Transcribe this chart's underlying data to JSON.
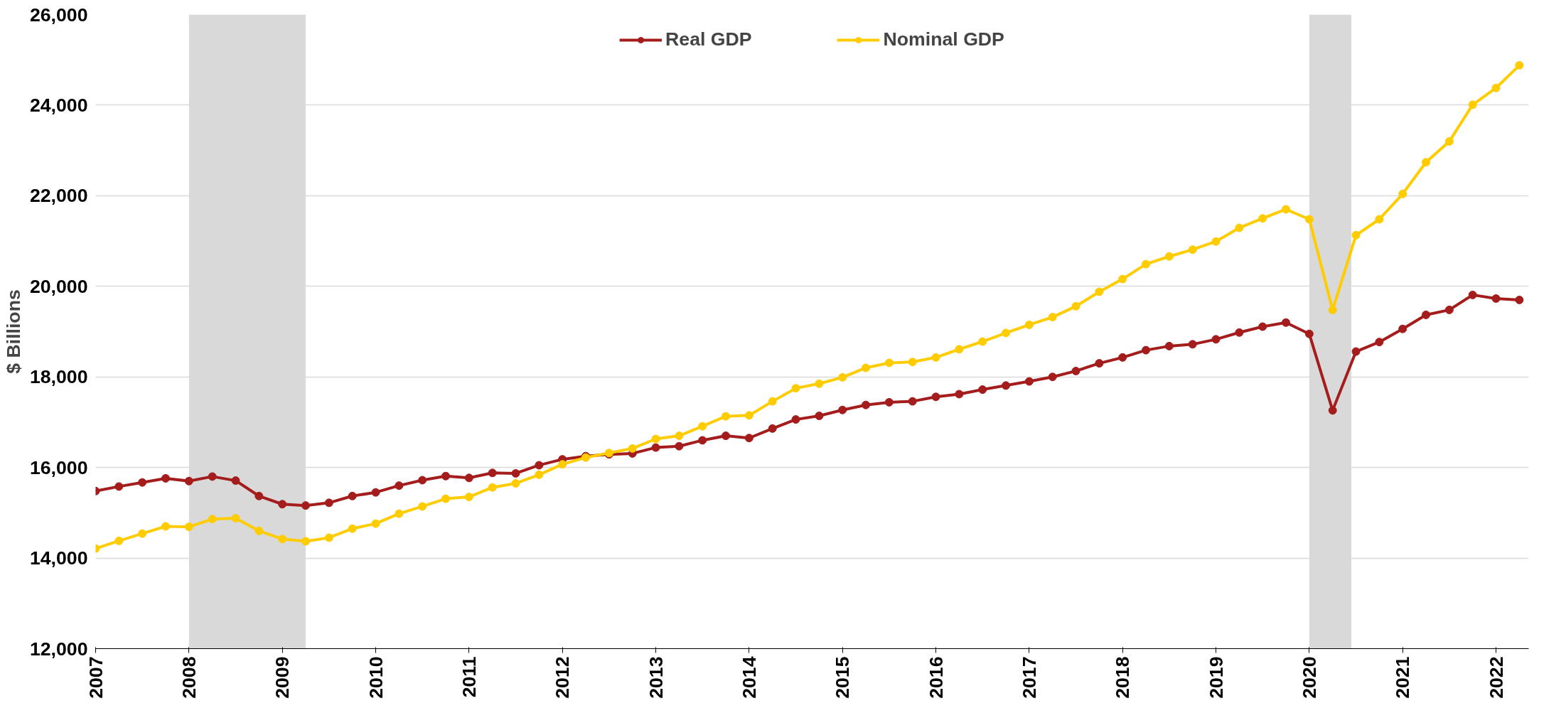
{
  "chart_data": {
    "type": "line",
    "ylabel": "$ Billions",
    "x": [
      2007,
      2007.25,
      2007.5,
      2007.75,
      2008,
      2008.25,
      2008.5,
      2008.75,
      2009,
      2009.25,
      2009.5,
      2009.75,
      2010,
      2010.25,
      2010.5,
      2010.75,
      2011,
      2011.25,
      2011.5,
      2011.75,
      2012,
      2012.25,
      2012.5,
      2012.75,
      2013,
      2013.25,
      2013.5,
      2013.75,
      2014,
      2014.25,
      2014.5,
      2014.75,
      2015,
      2015.25,
      2015.5,
      2015.75,
      2016,
      2016.25,
      2016.5,
      2016.75,
      2017,
      2017.25,
      2017.5,
      2017.75,
      2018,
      2018.25,
      2018.5,
      2018.75,
      2019,
      2019.25,
      2019.5,
      2019.75,
      2020,
      2020.25,
      2020.5,
      2020.75,
      2021,
      2021.25,
      2021.5,
      2021.75,
      2022,
      2022.25
    ],
    "series": [
      {
        "name": "Real GDP",
        "color": "#a51c1c",
        "values": [
          15480,
          15580,
          15670,
          15760,
          15700,
          15800,
          15710,
          15370,
          15190,
          15160,
          15220,
          15370,
          15450,
          15600,
          15720,
          15810,
          15770,
          15880,
          15870,
          16050,
          16180,
          16250,
          16290,
          16310,
          16440,
          16470,
          16600,
          16700,
          16650,
          16860,
          17060,
          17140,
          17270,
          17380,
          17440,
          17460,
          17560,
          17620,
          17720,
          17810,
          17900,
          18000,
          18130,
          18300,
          18430,
          18590,
          18680,
          18720,
          18830,
          18980,
          19110,
          19200,
          18950,
          17260,
          18560,
          18770,
          19060,
          19370,
          19480,
          19810,
          19730,
          19700
        ]
      },
      {
        "name": "Nominal GDP",
        "color": "#ffcc00",
        "values": [
          14210,
          14380,
          14540,
          14700,
          14690,
          14860,
          14880,
          14600,
          14420,
          14370,
          14450,
          14650,
          14760,
          14980,
          15140,
          15310,
          15350,
          15560,
          15650,
          15840,
          16070,
          16220,
          16320,
          16420,
          16630,
          16700,
          16910,
          17130,
          17150,
          17460,
          17750,
          17850,
          17990,
          18200,
          18310,
          18330,
          18430,
          18610,
          18780,
          18970,
          19150,
          19320,
          19560,
          19880,
          20160,
          20490,
          20660,
          20810,
          20990,
          21290,
          21500,
          21700,
          21480,
          19480,
          21130,
          21480,
          22040,
          22740,
          23200,
          24010,
          24380,
          24880
        ]
      }
    ],
    "xlim": [
      2007,
      2022.35
    ],
    "xticks": [
      2007,
      2008,
      2009,
      2010,
      2011,
      2012,
      2013,
      2014,
      2015,
      2016,
      2017,
      2018,
      2019,
      2020,
      2021,
      2022
    ],
    "ylim": [
      12000,
      26000
    ],
    "yticks": [
      {
        "value": 12000,
        "label": "12,000"
      },
      {
        "value": 14000,
        "label": "14,000"
      },
      {
        "value": 16000,
        "label": "16,000"
      },
      {
        "value": 18000,
        "label": "18,000"
      },
      {
        "value": 20000,
        "label": "20,000"
      },
      {
        "value": 22000,
        "label": "22,000"
      },
      {
        "value": 24000,
        "label": "24,000"
      },
      {
        "value": 26000,
        "label": "26,000"
      }
    ],
    "bands": [
      {
        "axis": "x",
        "from": 2008.0,
        "to": 2009.25,
        "color": "#d9d9d9"
      },
      {
        "axis": "x",
        "from": 2020.0,
        "to": 2020.45,
        "color": "#d9d9d9"
      }
    ],
    "grid": "y",
    "legend": "top",
    "marker": "circle",
    "line_style": "solid"
  }
}
